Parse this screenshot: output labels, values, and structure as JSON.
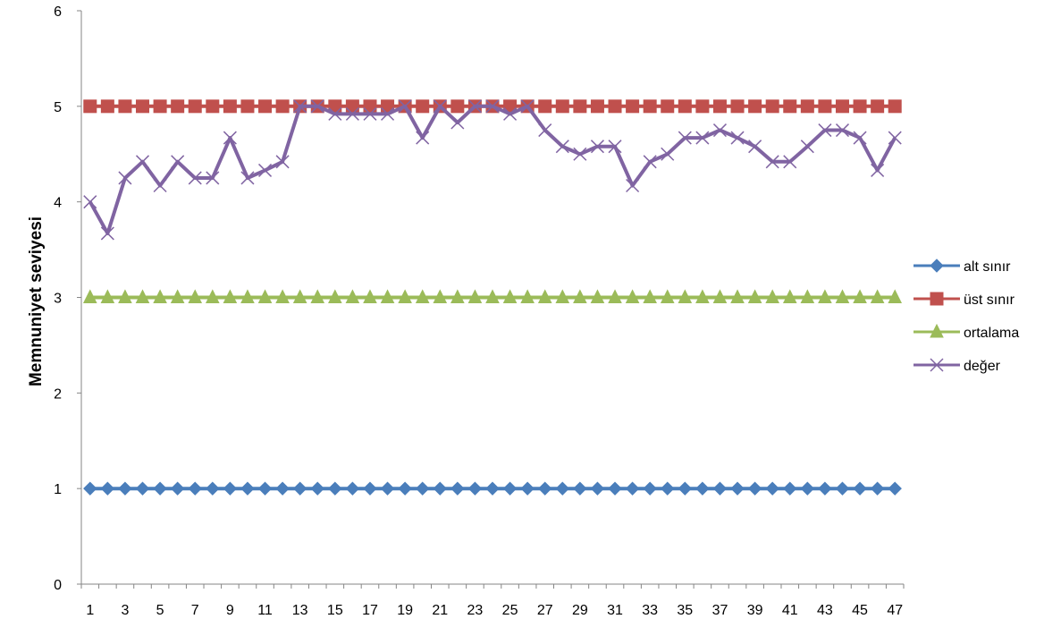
{
  "chart_data": {
    "type": "line",
    "title": "",
    "xlabel": "",
    "ylabel": "Memnuniyet seviyesi",
    "ylim": [
      0,
      6
    ],
    "yticks": [
      0,
      1,
      2,
      3,
      4,
      5,
      6
    ],
    "x": [
      1,
      2,
      3,
      4,
      5,
      6,
      7,
      8,
      9,
      10,
      11,
      12,
      13,
      14,
      15,
      16,
      17,
      18,
      19,
      20,
      21,
      22,
      23,
      24,
      25,
      26,
      27,
      28,
      29,
      30,
      31,
      32,
      33,
      34,
      35,
      36,
      37,
      38,
      39,
      40,
      41,
      42,
      43,
      44,
      45,
      46,
      47
    ],
    "x_tick_labels": [
      "1",
      "3",
      "5",
      "7",
      "9",
      "11",
      "13",
      "15",
      "17",
      "19",
      "21",
      "23",
      "25",
      "27",
      "29",
      "31",
      "33",
      "35",
      "37",
      "39",
      "41",
      "43",
      "45",
      "47"
    ],
    "grid": false,
    "legend_position": "right",
    "series": [
      {
        "name": "alt sınır",
        "color": "#4a7ebb",
        "marker": "diamond",
        "values": [
          1,
          1,
          1,
          1,
          1,
          1,
          1,
          1,
          1,
          1,
          1,
          1,
          1,
          1,
          1,
          1,
          1,
          1,
          1,
          1,
          1,
          1,
          1,
          1,
          1,
          1,
          1,
          1,
          1,
          1,
          1,
          1,
          1,
          1,
          1,
          1,
          1,
          1,
          1,
          1,
          1,
          1,
          1,
          1,
          1,
          1,
          1
        ]
      },
      {
        "name": "üst sınır",
        "color": "#c0504d",
        "marker": "square",
        "values": [
          5,
          5,
          5,
          5,
          5,
          5,
          5,
          5,
          5,
          5,
          5,
          5,
          5,
          5,
          5,
          5,
          5,
          5,
          5,
          5,
          5,
          5,
          5,
          5,
          5,
          5,
          5,
          5,
          5,
          5,
          5,
          5,
          5,
          5,
          5,
          5,
          5,
          5,
          5,
          5,
          5,
          5,
          5,
          5,
          5,
          5,
          5
        ]
      },
      {
        "name": "ortalama",
        "color": "#9bbb59",
        "marker": "triangle",
        "values": [
          3,
          3,
          3,
          3,
          3,
          3,
          3,
          3,
          3,
          3,
          3,
          3,
          3,
          3,
          3,
          3,
          3,
          3,
          3,
          3,
          3,
          3,
          3,
          3,
          3,
          3,
          3,
          3,
          3,
          3,
          3,
          3,
          3,
          3,
          3,
          3,
          3,
          3,
          3,
          3,
          3,
          3,
          3,
          3,
          3,
          3,
          3
        ]
      },
      {
        "name": "değer",
        "color": "#8064a2",
        "marker": "x",
        "values": [
          4.0,
          3.67,
          4.25,
          4.42,
          4.17,
          4.42,
          4.25,
          4.25,
          4.67,
          4.25,
          4.33,
          4.42,
          5.0,
          5.0,
          4.92,
          4.92,
          4.92,
          4.92,
          5.0,
          4.67,
          5.0,
          4.83,
          5.0,
          5.0,
          4.92,
          5.0,
          4.75,
          4.58,
          4.5,
          4.58,
          4.58,
          4.17,
          4.42,
          4.5,
          4.67,
          4.67,
          4.75,
          4.67,
          4.58,
          4.42,
          4.42,
          4.58,
          4.75,
          4.75,
          4.67,
          4.33,
          4.67
        ]
      }
    ]
  }
}
